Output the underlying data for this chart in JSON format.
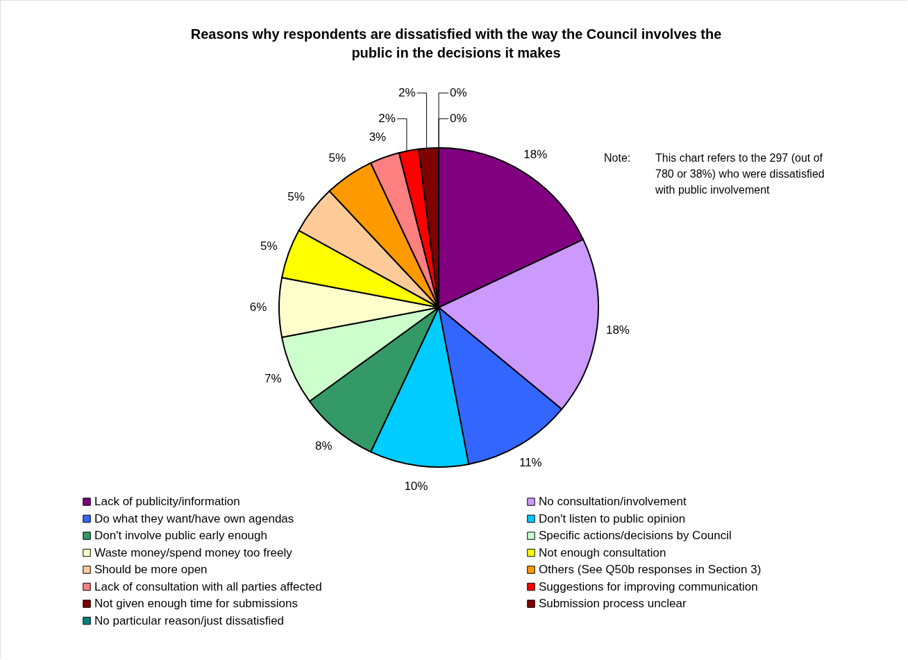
{
  "chart_data": {
    "type": "pie",
    "title": "Reasons why respondents are dissatisfied with the way the Council involves the public in the decisions it makes",
    "categories": [
      "Lack of publicity/information",
      "No consultation/involvement",
      "Do what they want/have own agendas",
      "Don't listen to public opinion",
      "Don't involve public early enough",
      "Specific actions/decisions by Council",
      "Waste money/spend money too freely",
      "Not enough consultation",
      "Should be more open",
      "Others (See Q50b responses in Section 3)",
      "Lack of consultation with all parties affected",
      "Suggestions for improving communication",
      "Not given enough time for submissions",
      "Submission process unclear",
      "No particular reason/just dissatisfied"
    ],
    "values": [
      18,
      18,
      11,
      10,
      8,
      7,
      6,
      5,
      5,
      5,
      3,
      2,
      2,
      0,
      0
    ],
    "colors": [
      "#800080",
      "#cc99ff",
      "#3366ff",
      "#00ccff",
      "#339966",
      "#ccffcc",
      "#ffffcc",
      "#ffff00",
      "#ffcc99",
      "#ff9900",
      "#ff8080",
      "#ff0000",
      "#800000",
      "#800000",
      "#008080"
    ],
    "value_labels": [
      "18%",
      "18%",
      "11%",
      "10%",
      "8%",
      "7%",
      "6%",
      "5%",
      "5%",
      "5%",
      "3%",
      "2%",
      "2%",
      "0%",
      "0%"
    ],
    "legend": "bottom",
    "annotations": [
      "Note:",
      "This chart refers to the 297 (out of 780 or 38%) who were dissatisfied with public involvement"
    ]
  }
}
